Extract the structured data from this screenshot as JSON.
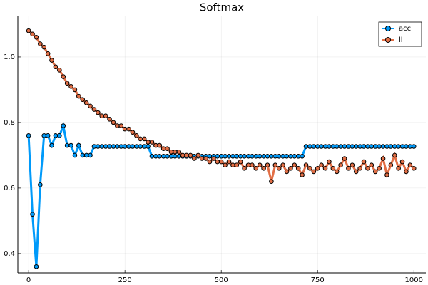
{
  "chart_data": {
    "type": "line",
    "title": "Softmax",
    "x": [
      0,
      10,
      20,
      30,
      40,
      50,
      60,
      70,
      80,
      90,
      100,
      110,
      120,
      130,
      140,
      150,
      160,
      170,
      180,
      190,
      200,
      210,
      220,
      230,
      240,
      250,
      260,
      270,
      280,
      290,
      300,
      310,
      320,
      330,
      340,
      350,
      360,
      370,
      380,
      390,
      400,
      410,
      420,
      430,
      440,
      450,
      460,
      470,
      480,
      490,
      500,
      510,
      520,
      530,
      540,
      550,
      560,
      570,
      580,
      590,
      600,
      610,
      620,
      630,
      640,
      650,
      660,
      670,
      680,
      690,
      700,
      710,
      720,
      730,
      740,
      750,
      760,
      770,
      780,
      790,
      800,
      810,
      820,
      830,
      840,
      850,
      860,
      870,
      880,
      890,
      900,
      910,
      920,
      930,
      940,
      950,
      960,
      970,
      980,
      990,
      1000
    ],
    "series": [
      {
        "name": "acc",
        "color": "#009afa",
        "values": [
          0.76,
          0.52,
          0.36,
          0.61,
          0.76,
          0.76,
          0.73,
          0.76,
          0.76,
          0.79,
          0.73,
          0.73,
          0.7,
          0.73,
          0.7,
          0.7,
          0.7,
          0.727,
          0.727,
          0.727,
          0.727,
          0.727,
          0.727,
          0.727,
          0.727,
          0.727,
          0.727,
          0.727,
          0.727,
          0.727,
          0.727,
          0.727,
          0.697,
          0.697,
          0.697,
          0.697,
          0.697,
          0.697,
          0.697,
          0.697,
          0.697,
          0.697,
          0.697,
          0.697,
          0.697,
          0.697,
          0.697,
          0.697,
          0.697,
          0.697,
          0.697,
          0.697,
          0.697,
          0.697,
          0.697,
          0.697,
          0.697,
          0.697,
          0.697,
          0.697,
          0.697,
          0.697,
          0.697,
          0.697,
          0.697,
          0.697,
          0.697,
          0.697,
          0.697,
          0.697,
          0.697,
          0.697,
          0.727,
          0.727,
          0.727,
          0.727,
          0.727,
          0.727,
          0.727,
          0.727,
          0.727,
          0.727,
          0.727,
          0.727,
          0.727,
          0.727,
          0.727,
          0.727,
          0.727,
          0.727,
          0.727,
          0.727,
          0.727,
          0.727,
          0.727,
          0.727,
          0.727,
          0.727,
          0.727,
          0.727,
          0.727
        ]
      },
      {
        "name": "ll",
        "color": "#e26f46",
        "values": [
          1.08,
          1.07,
          1.06,
          1.04,
          1.03,
          1.01,
          0.99,
          0.97,
          0.96,
          0.94,
          0.92,
          0.91,
          0.9,
          0.88,
          0.87,
          0.86,
          0.85,
          0.84,
          0.83,
          0.82,
          0.82,
          0.81,
          0.8,
          0.79,
          0.79,
          0.78,
          0.78,
          0.77,
          0.76,
          0.75,
          0.75,
          0.74,
          0.74,
          0.73,
          0.73,
          0.72,
          0.72,
          0.71,
          0.71,
          0.71,
          0.7,
          0.7,
          0.7,
          0.69,
          0.7,
          0.69,
          0.69,
          0.68,
          0.69,
          0.68,
          0.68,
          0.67,
          0.68,
          0.67,
          0.67,
          0.68,
          0.66,
          0.67,
          0.67,
          0.66,
          0.67,
          0.66,
          0.67,
          0.62,
          0.67,
          0.66,
          0.67,
          0.65,
          0.66,
          0.67,
          0.66,
          0.64,
          0.67,
          0.66,
          0.65,
          0.66,
          0.67,
          0.66,
          0.68,
          0.66,
          0.65,
          0.67,
          0.69,
          0.66,
          0.67,
          0.65,
          0.66,
          0.68,
          0.66,
          0.67,
          0.65,
          0.66,
          0.69,
          0.64,
          0.67,
          0.7,
          0.66,
          0.68,
          0.65,
          0.67,
          0.66
        ]
      }
    ],
    "xlim": [
      -28,
      1031
    ],
    "ylim": [
      0.341,
      1.126
    ],
    "xticks": [
      0,
      250,
      500,
      750,
      1000
    ],
    "yticks": [
      0.4,
      0.6,
      0.8,
      {
        "value": 1.0,
        "label": "1.0"
      }
    ],
    "grid": true,
    "legend": "top-right"
  }
}
